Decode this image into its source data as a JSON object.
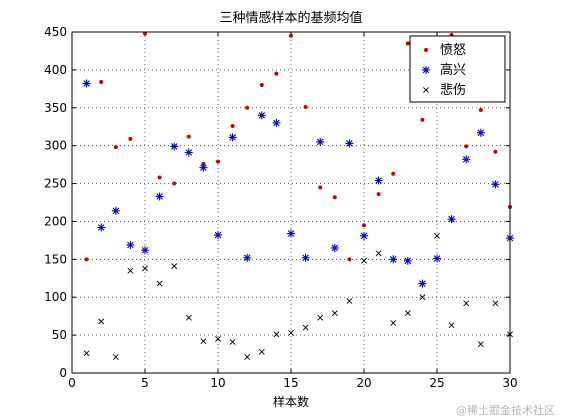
{
  "chart_data": {
    "type": "scatter",
    "title": "三种情感样本的基频均值",
    "xlabel": "样本数",
    "ylabel": "",
    "xlim": [
      0,
      30
    ],
    "ylim": [
      0,
      450
    ],
    "xticks": [
      0,
      5,
      10,
      15,
      20,
      25,
      30
    ],
    "yticks": [
      0,
      50,
      100,
      150,
      200,
      250,
      300,
      350,
      400,
      450
    ],
    "grid": true,
    "legend_position": "top-right",
    "series": [
      {
        "name": "愤怒",
        "marker": "dot",
        "color": "#cc0000",
        "x": [
          1,
          2,
          3,
          4,
          5,
          6,
          7,
          8,
          9,
          10,
          11,
          12,
          13,
          14,
          15,
          16,
          17,
          18,
          19,
          20,
          21,
          22,
          23,
          24,
          25,
          26,
          27,
          28,
          29,
          30
        ],
        "values": [
          150,
          384,
          298,
          309,
          448,
          258,
          250,
          312,
          276,
          279,
          326,
          350,
          380,
          395,
          445,
          351,
          245,
          232,
          150,
          195,
          236,
          263,
          435,
          334,
          438,
          446,
          299,
          347,
          292,
          219
        ]
      },
      {
        "name": "高兴",
        "marker": "asterisk",
        "color": "#0000cc",
        "x": [
          1,
          2,
          3,
          4,
          5,
          6,
          7,
          8,
          9,
          10,
          11,
          12,
          13,
          14,
          15,
          16,
          17,
          18,
          19,
          20,
          21,
          22,
          23,
          24,
          25,
          26,
          27,
          28,
          29,
          30
        ],
        "values": [
          382,
          192,
          214,
          169,
          162,
          233,
          299,
          291,
          271,
          182,
          311,
          152,
          340,
          330,
          184,
          152,
          305,
          165,
          303,
          181,
          254,
          150,
          148,
          118,
          151,
          203,
          282,
          317,
          249,
          178
        ]
      },
      {
        "name": "悲伤",
        "marker": "x",
        "color": "#000000",
        "x": [
          1,
          2,
          3,
          4,
          5,
          6,
          7,
          8,
          9,
          10,
          11,
          12,
          13,
          14,
          15,
          16,
          17,
          18,
          19,
          20,
          21,
          22,
          23,
          24,
          25,
          26,
          27,
          28,
          29,
          30
        ],
        "values": [
          26,
          68,
          21,
          135,
          138,
          118,
          141,
          73,
          42,
          45,
          41,
          21,
          28,
          51,
          53,
          60,
          73,
          79,
          95,
          148,
          158,
          66,
          79,
          100,
          181,
          63,
          92,
          38,
          92,
          51
        ]
      }
    ]
  },
  "watermark": "@稀土掘金技术社区"
}
